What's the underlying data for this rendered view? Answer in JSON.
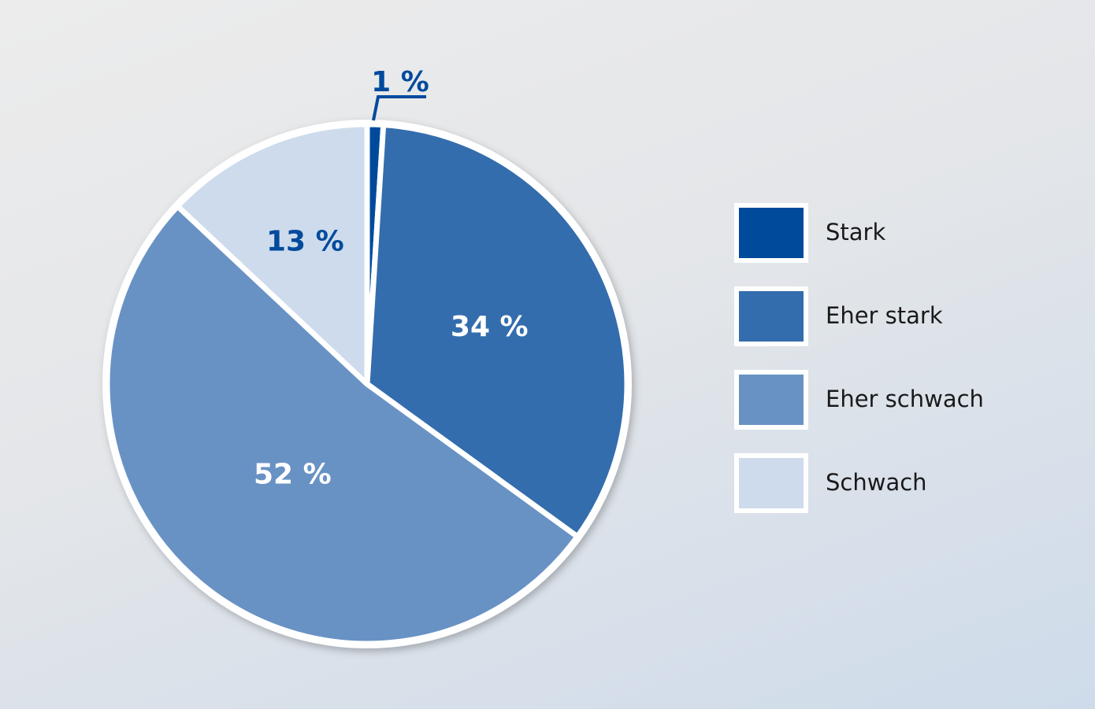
{
  "chart_data": {
    "type": "pie",
    "title": "",
    "start": "top",
    "direction": "clockwise",
    "slices": [
      {
        "label": "Stark",
        "value": 1,
        "display": "1 %",
        "color": "#004a9c",
        "text_color": "#004a9c"
      },
      {
        "label": "Eher stark",
        "value": 34,
        "display": "34 %",
        "color": "#336dad",
        "text_color": "#ffffff"
      },
      {
        "label": "Eher schwach",
        "value": 52,
        "display": "52 %",
        "color": "#6892c4",
        "text_color": "#ffffff"
      },
      {
        "label": "Schwach",
        "value": 13,
        "display": "13 %",
        "color": "#cddbec",
        "text_color": "#004a9c"
      }
    ],
    "legend_position": "right"
  }
}
